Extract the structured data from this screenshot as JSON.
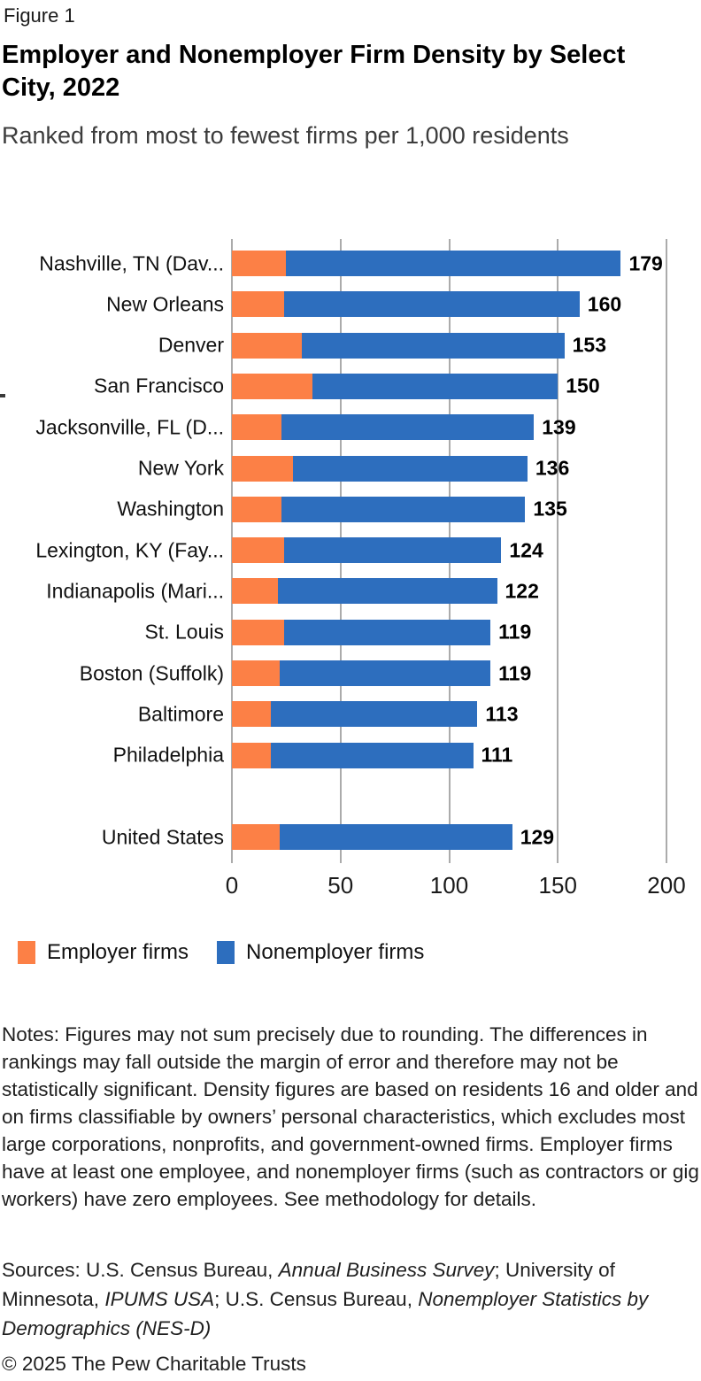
{
  "figure_label": "Figure 1",
  "title": "Employer and Nonemployer Firm Density by Select City, 2022",
  "subtitle": "Ranked from most to fewest firms per 1,000 residents",
  "colors": {
    "employer": "#fc8046",
    "nonemployer": "#2d6ebe",
    "gridline": "#ababab"
  },
  "chart_data": {
    "type": "bar",
    "orientation": "horizontal",
    "stacked": true,
    "title": "Employer and Nonemployer Firm Density by Select City, 2022",
    "subtitle": "Ranked from most to fewest firms per 1,000 residents",
    "xlabel": "",
    "ylabel": "",
    "xlim": [
      0,
      200
    ],
    "x_ticks": [
      0,
      50,
      100,
      150,
      200
    ],
    "grid": "vertical",
    "legend_position": "bottom",
    "categories": [
      "Nashville, TN (Dav...",
      "New Orleans",
      "Denver",
      "San Francisco",
      "Jacksonville, FL (D...",
      "New York",
      "Washington",
      "Lexington, KY (Fay...",
      "Indianapolis (Mari...",
      "St. Louis",
      "Boston (Suffolk)",
      "Baltimore",
      "Philadelphia",
      "United States"
    ],
    "series": [
      {
        "name": "Employer firms",
        "color": "#fc8046",
        "values": [
          25,
          24,
          32,
          37,
          23,
          28,
          23,
          24,
          21,
          24,
          22,
          18,
          18,
          22
        ]
      },
      {
        "name": "Nonemployer firms",
        "color": "#2d6ebe",
        "values": [
          154,
          136,
          121,
          113,
          116,
          108,
          112,
          100,
          101,
          95,
          97,
          95,
          93,
          107
        ]
      }
    ],
    "totals": [
      179,
      160,
      153,
      150,
      139,
      136,
      135,
      124,
      122,
      119,
      119,
      113,
      111,
      129
    ],
    "gap_before_category": "United States"
  },
  "legend": {
    "items": [
      {
        "label": "Employer firms",
        "color": "#fc8046"
      },
      {
        "label": "Nonemployer firms",
        "color": "#2d6ebe"
      }
    ]
  },
  "notes": "Notes: Figures may not sum precisely due to rounding. The differences in rankings may fall outside the margin of error and therefore may not be statistically significant. Density figures are based on residents 16 and older and on firms classifiable by owners’ personal characteristics, which excludes most large corporations, nonprofits, and government-owned firms. Employer firms have at least one employee, and nonemployer firms (such as contractors or gig workers) have zero employees. See methodology for details.",
  "sources_segments": [
    {
      "text": "Sources: U.S. Census Bureau, ",
      "italic": false
    },
    {
      "text": "Annual Business Survey",
      "italic": true
    },
    {
      "text": "; University of Minnesota, ",
      "italic": false
    },
    {
      "text": "IPUMS USA",
      "italic": true
    },
    {
      "text": "; U.S. Census Bureau, ",
      "italic": false
    },
    {
      "text": "Nonemployer Statistics by Demographics (NES-D)",
      "italic": true
    }
  ],
  "copyright": "© 2025 The Pew Charitable Trusts"
}
